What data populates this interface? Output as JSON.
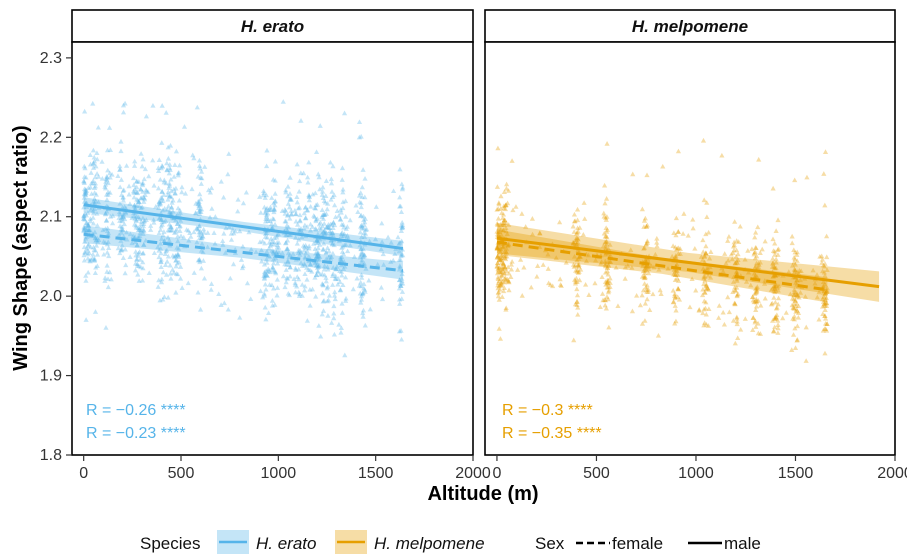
{
  "chart_data": {
    "type": "scatter",
    "xlabel": "Altitude (m)",
    "ylabel": "Wing Shape (aspect ratio)",
    "xlim": [
      -60,
      2000
    ],
    "ylim": [
      1.8,
      2.32
    ],
    "xticks": [
      "0",
      "500",
      "1000",
      "1500",
      "2000"
    ],
    "yticks": [
      "1.8",
      "1.9",
      "2.0",
      "2.1",
      "2.2",
      "2.3"
    ],
    "grid": false,
    "panels": [
      {
        "strip": "H. erato",
        "color": "#56B4E9",
        "x_max": 1640,
        "fits": [
          {
            "sex": "male",
            "intercept": 2.115,
            "end": 2.06,
            "ci": 0.006
          },
          {
            "sex": "female",
            "intercept": 2.078,
            "end": 2.032,
            "ci": 0.007
          }
        ],
        "annotations": [
          "R = −0.26 ****",
          "R = −0.23 ****"
        ],
        "cluster_altitudes": [
          0,
          60,
          120,
          200,
          270,
          300,
          400,
          440,
          480,
          600,
          940,
          980,
          1050,
          1100,
          1150,
          1200,
          1240,
          1280,
          1330,
          1430,
          1640
        ],
        "spread": [
          1.92,
          2.25
        ]
      },
      {
        "strip": "H. melpomene",
        "color": "#E69F00",
        "x_max": 1660,
        "fits": [
          {
            "sex": "male",
            "intercept": 2.073,
            "end": 2.012,
            "x_end": 1920,
            "ci": 0.012
          },
          {
            "sex": "female",
            "intercept": 2.068,
            "end": 2.008,
            "x_end": 1660,
            "ci": 0.01
          }
        ],
        "annotations": [
          "R = −0.3 ****",
          "R = −0.35 ****"
        ],
        "cluster_altitudes": [
          0,
          20,
          50,
          400,
          550,
          750,
          900,
          1050,
          1200,
          1300,
          1400,
          1500,
          1650
        ],
        "spread": [
          1.94,
          2.2
        ]
      }
    ],
    "legend": {
      "position": "bottom",
      "species_title": "Species",
      "species": [
        {
          "label": "H. erato",
          "color": "#56B4E9"
        },
        {
          "label": "H. melpomene",
          "color": "#E69F00"
        }
      ],
      "sex_title": "Sex",
      "sex": [
        {
          "label": "female",
          "linetype": "dashed"
        },
        {
          "label": "male",
          "linetype": "solid"
        }
      ]
    }
  }
}
